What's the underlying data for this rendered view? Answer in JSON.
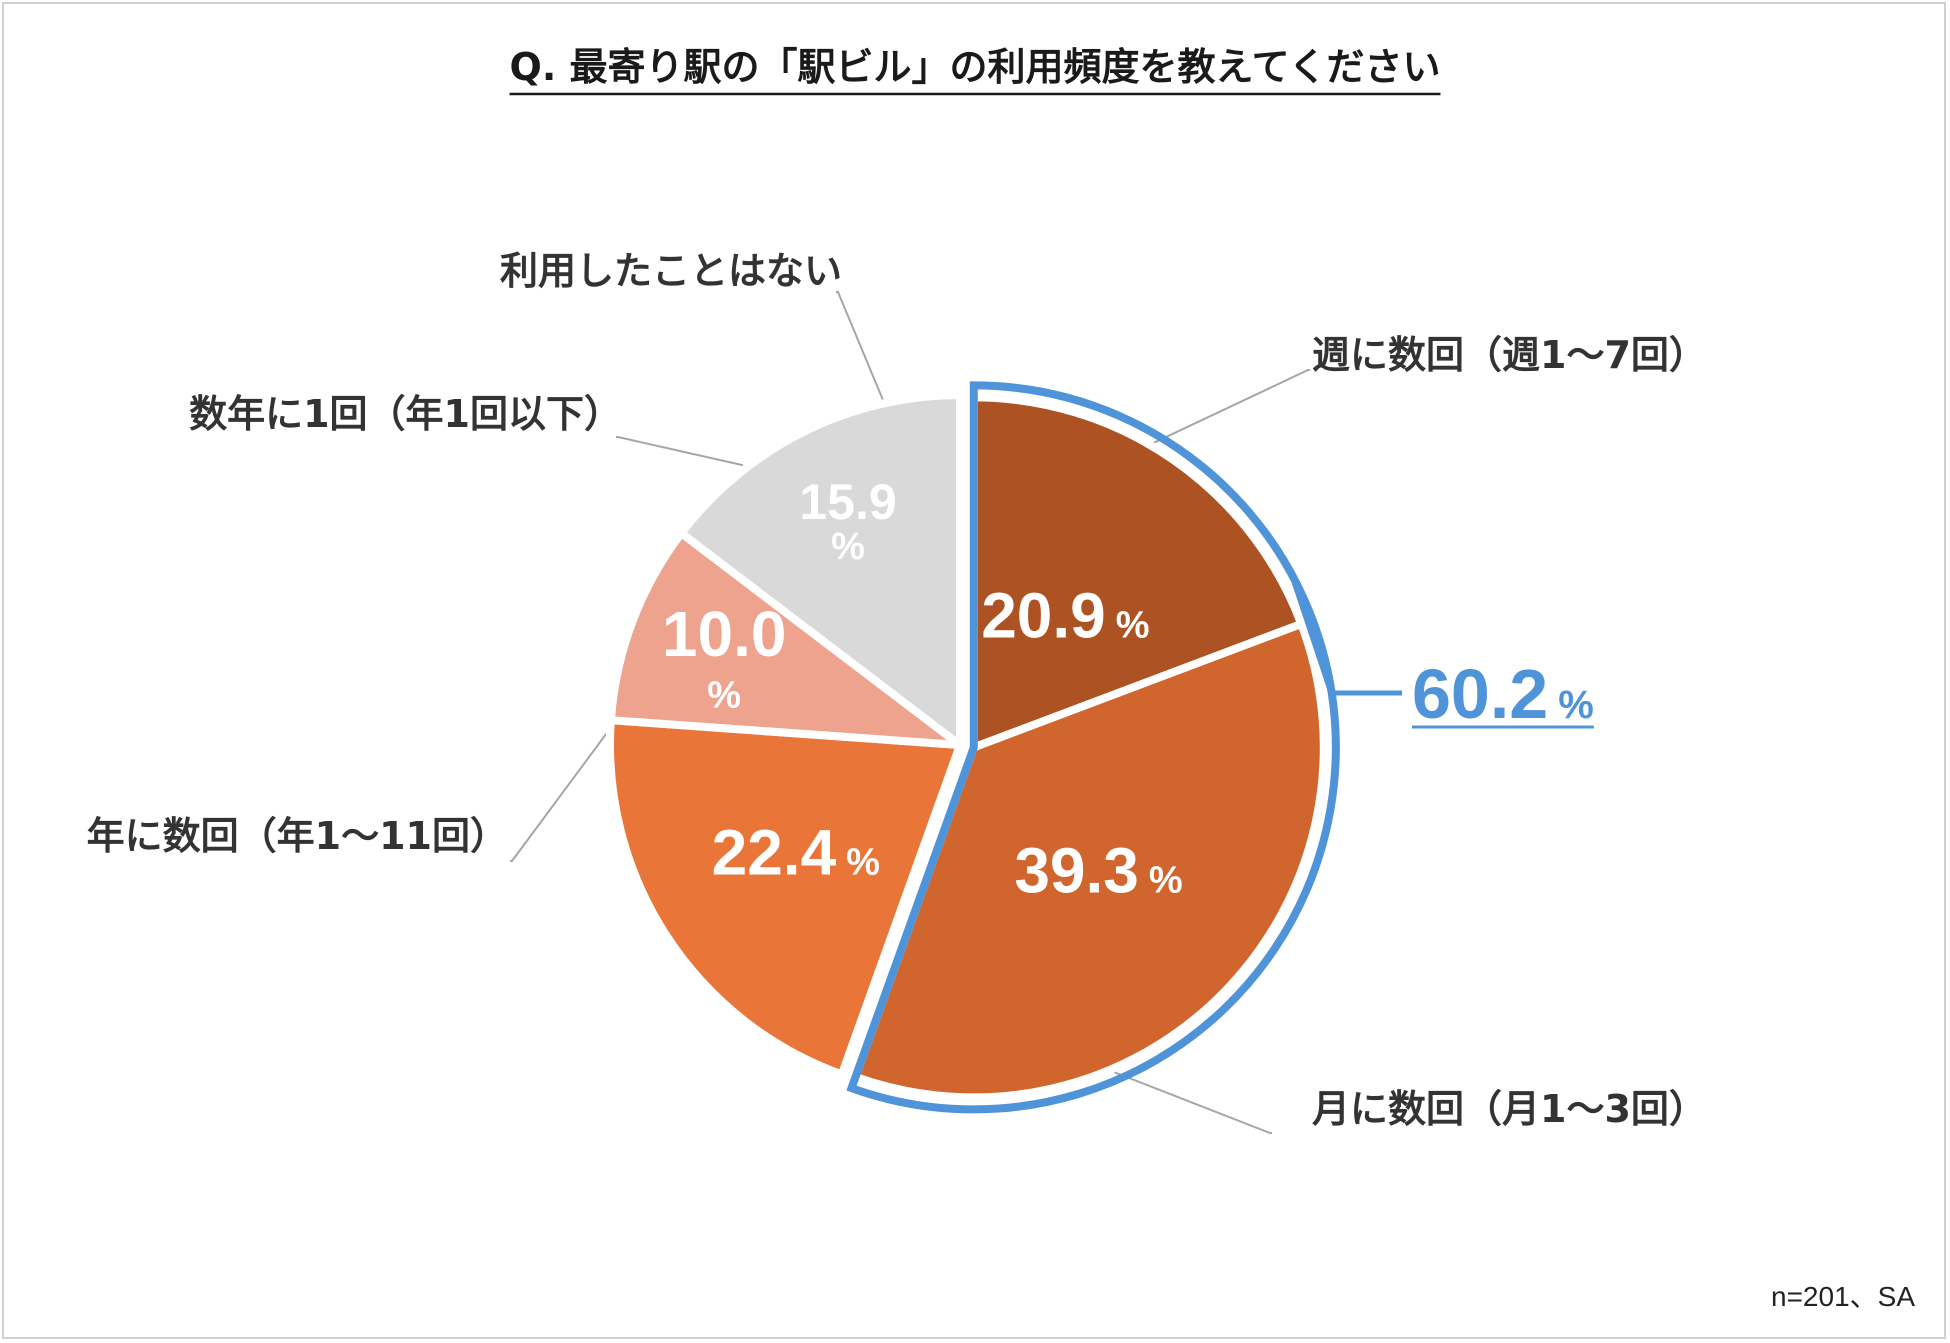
{
  "chart_data": {
    "type": "pie",
    "title": "Q. 最寄り駅の「駅ビル」の利用頻度を教えてください",
    "note": "n=201、SA",
    "percent_sign": "%",
    "slices": [
      {
        "label": "週に数回（週1～7回）",
        "value": 20.9,
        "value_text": "20.9",
        "color": "#ad5223",
        "text_color": "#ffffff"
      },
      {
        "label": "月に数回（月1～3回）",
        "value": 39.3,
        "value_text": "39.3",
        "color": "#d0662e",
        "text_color": "#ffffff"
      },
      {
        "label": "年に数回（年1～11回）",
        "value": 22.4,
        "value_text": "22.4",
        "color": "#e97638",
        "text_color": "#ffffff"
      },
      {
        "label": "数年に1回（年1回以下）",
        "value": 10.0,
        "value_text": "10.0",
        "color": "#eda38e",
        "text_color": "#ffffff"
      },
      {
        "label": "利用したことはない",
        "value": 15.9,
        "value_text": "15.9",
        "color": "#d9d9d9",
        "text_color": "#ffffff"
      }
    ],
    "highlight": {
      "value_text": "60.2",
      "color": "#4f93d8",
      "slices": [
        0,
        1
      ]
    }
  }
}
